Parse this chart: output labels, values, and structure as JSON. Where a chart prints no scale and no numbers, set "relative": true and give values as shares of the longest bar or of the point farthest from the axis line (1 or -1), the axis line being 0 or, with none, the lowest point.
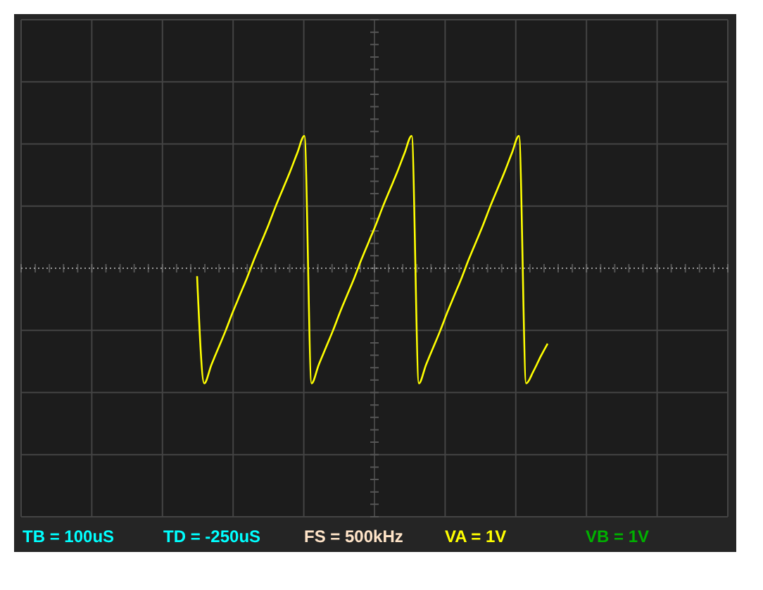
{
  "chart_data": {
    "type": "line",
    "relative": true,
    "grid": true,
    "categories": [
      null,
      null,
      null,
      null,
      null,
      null,
      null,
      null,
      null,
      null,
      null,
      null,
      null,
      null,
      null,
      null,
      null,
      null,
      null,
      null,
      null,
      null,
      null,
      null,
      null,
      null,
      null,
      null,
      null,
      null,
      null,
      null,
      null,
      null,
      null,
      null,
      null,
      null,
      null,
      null,
      null,
      null,
      null,
      null,
      null,
      null,
      null,
      null,
      null,
      null
    ],
    "series": [
      {
        "color": "#ffff00",
        "values": [
          -0.06,
          -0.87,
          -0.73,
          -0.6,
          -0.47,
          -0.33,
          -0.2,
          -0.07,
          0.07,
          0.2,
          0.33,
          0.47,
          0.6,
          0.73,
          0.87,
          1,
          -0.87,
          -0.73,
          -0.6,
          -0.47,
          -0.33,
          -0.2,
          -0.07,
          0.07,
          0.2,
          0.33,
          0.47,
          0.6,
          0.73,
          0.87,
          1,
          -0.87,
          -0.73,
          -0.6,
          -0.47,
          -0.33,
          -0.2,
          -0.07,
          0.07,
          0.2,
          0.33,
          0.47,
          0.6,
          0.73,
          0.87,
          1,
          -0.87,
          -0.78,
          -0.67,
          -0.57
        ]
      }
    ],
    "ref_lines": [
      {
        "axis": "y",
        "value": 0,
        "color": "#999999",
        "line_style": "dotted"
      }
    ],
    "annotations": [
      "TB = 100uS",
      "TD = -250uS",
      "FS = 500kHz",
      "VA = 1V",
      "VB = 1V"
    ]
  }
}
